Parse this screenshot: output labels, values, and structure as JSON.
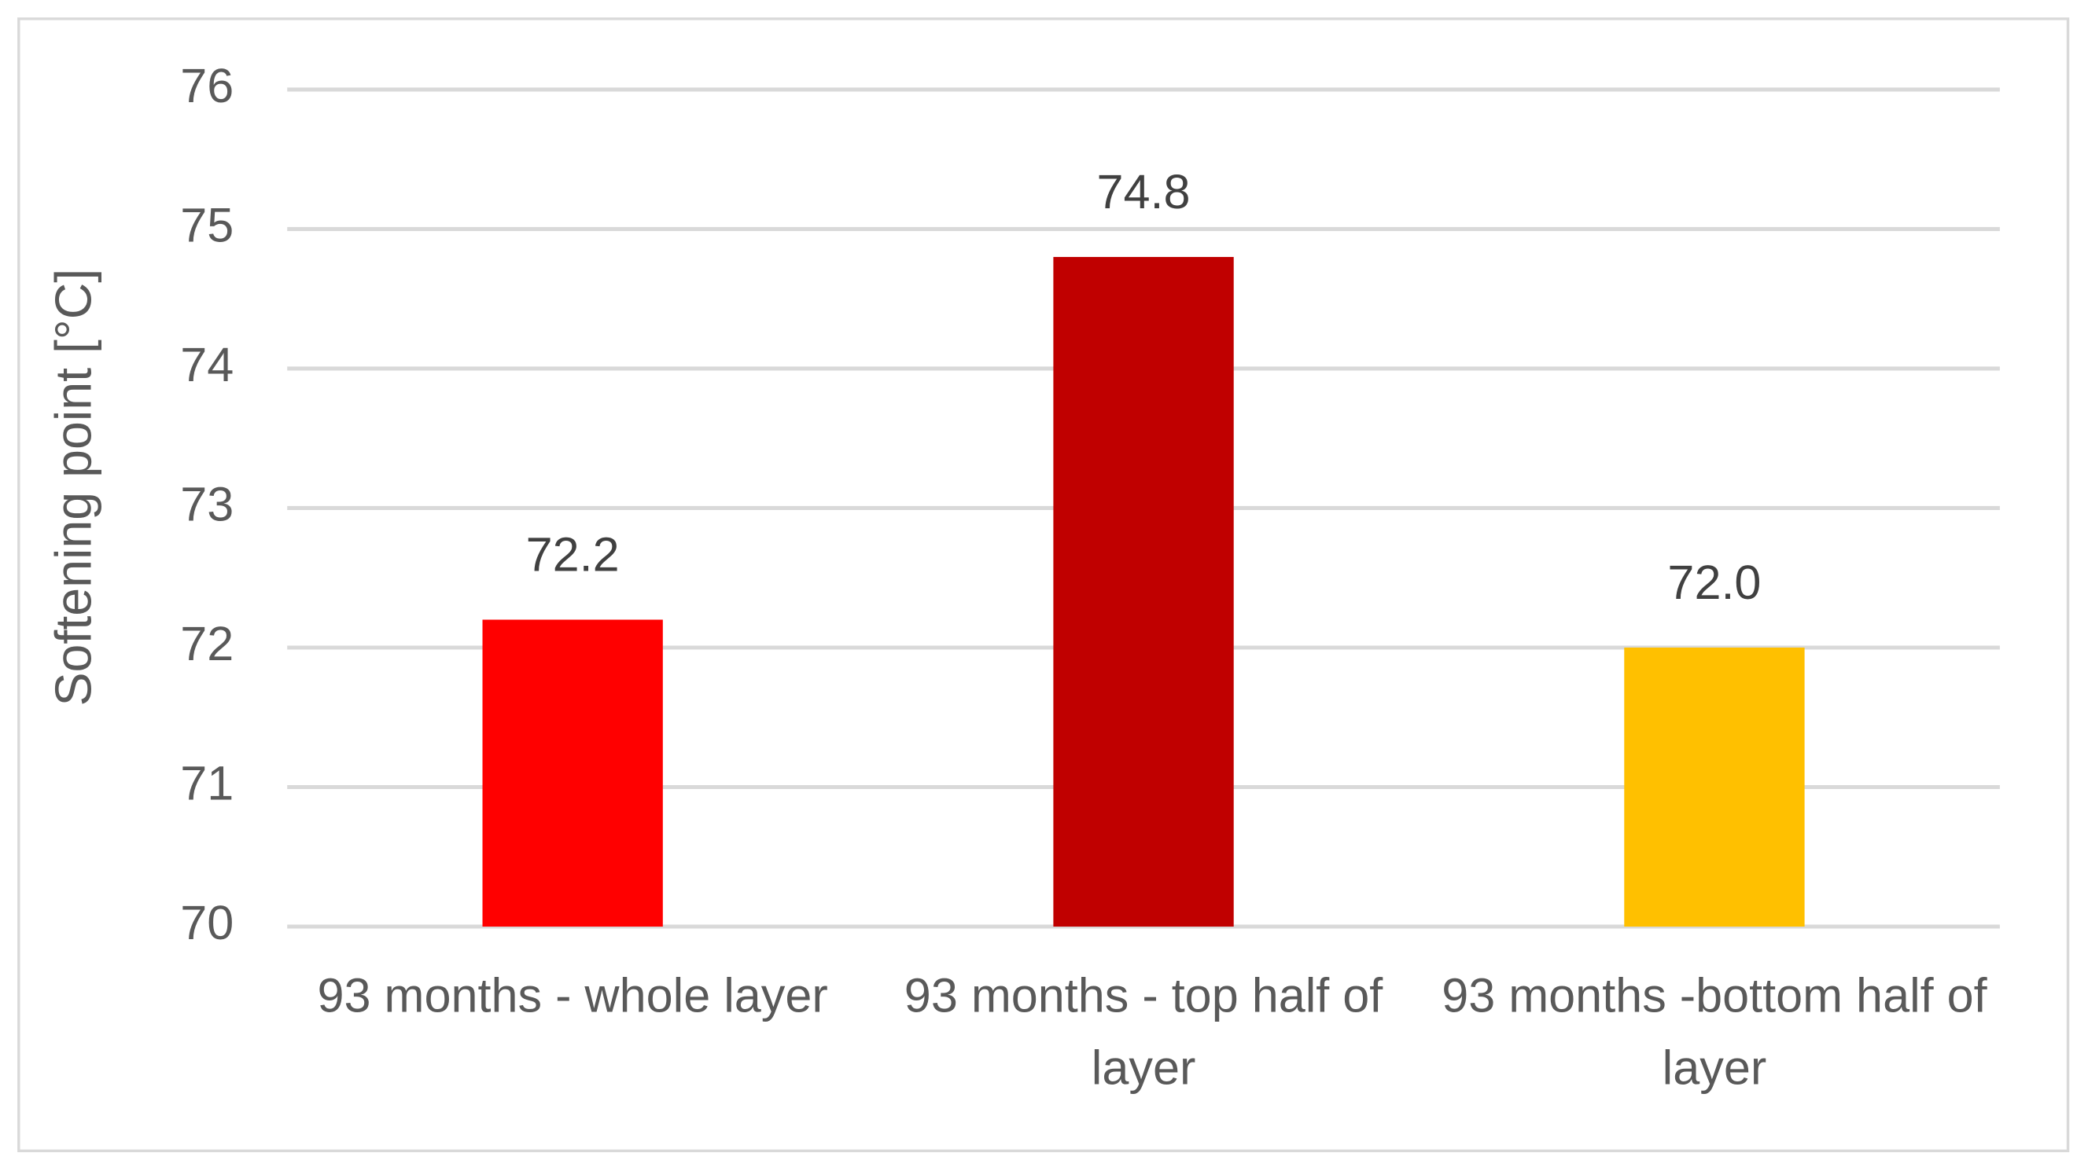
{
  "chart_data": {
    "type": "bar",
    "y_label": "Softening point [°C]",
    "categories": [
      "93 months - whole layer",
      "93 months - top half of layer",
      "93 months -bottom half of layer"
    ],
    "values": [
      72.2,
      74.8,
      72.0
    ],
    "value_labels": [
      "72.2",
      "74.8",
      "72.0"
    ],
    "colors": [
      "#ff0000",
      "#c00000",
      "#ffc000"
    ],
    "ylim": [
      70,
      76
    ],
    "yticks": [
      70,
      71,
      72,
      73,
      74,
      75,
      76
    ],
    "grid": true
  }
}
